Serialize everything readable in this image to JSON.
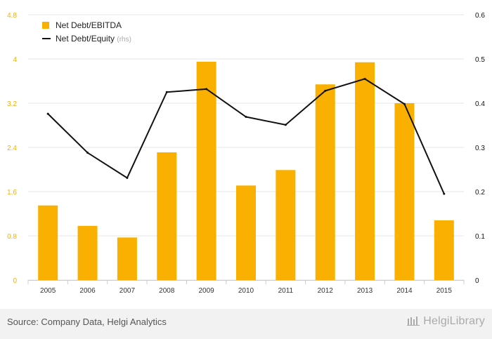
{
  "chart_data": {
    "type": "bar+line",
    "categories": [
      "2005",
      "2006",
      "2007",
      "2008",
      "2009",
      "2010",
      "2011",
      "2012",
      "2013",
      "2014",
      "2015"
    ],
    "series": [
      {
        "name": "Net Debt/EBITDA",
        "type": "bar",
        "axis": "left",
        "color": "#f9b000",
        "values": [
          1.35,
          0.98,
          0.77,
          2.31,
          3.95,
          1.71,
          1.99,
          3.54,
          3.94,
          3.2,
          1.08
        ]
      },
      {
        "name": "Net Debt/Equity",
        "suffix": "(rhs)",
        "type": "line",
        "axis": "right",
        "color": "#111111",
        "values": [
          0.376,
          0.288,
          0.231,
          0.425,
          0.432,
          0.369,
          0.351,
          0.428,
          0.455,
          0.398,
          0.195
        ]
      }
    ],
    "y_left": {
      "ticks": [
        "0",
        "0.8",
        "1.6",
        "2.4",
        "3.2",
        "4",
        "4.8"
      ],
      "range": [
        0,
        4.8
      ],
      "tick_color": "#f9b000"
    },
    "y_right": {
      "ticks": [
        "0",
        "0.1",
        "0.2",
        "0.3",
        "0.4",
        "0.5",
        "0.6"
      ],
      "range": [
        0,
        0.6
      ]
    },
    "grid": "horizontal",
    "legend_position": "top-left"
  },
  "footer": {
    "source": "Source: Company Data, Helgi Analytics",
    "brand": "HelgiLibrary"
  }
}
